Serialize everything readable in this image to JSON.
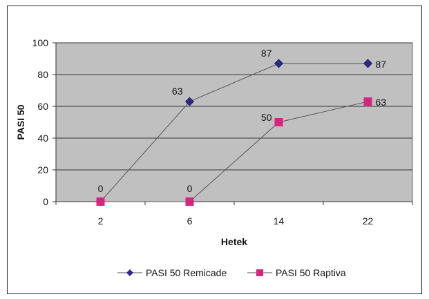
{
  "chart_data": {
    "type": "line",
    "title": "",
    "xlabel": "Hetek",
    "ylabel": "PASI 50",
    "categories": [
      "2",
      "6",
      "14",
      "22"
    ],
    "ylim": [
      0,
      100
    ],
    "yticks": [
      "0",
      "20",
      "40",
      "60",
      "80",
      "100"
    ],
    "grid": true,
    "legend_position": "bottom",
    "series": [
      {
        "name": "PASI 50 Remicade",
        "values": [
          0,
          63,
          87,
          87
        ],
        "labels": [
          "0",
          "63",
          "87",
          "87"
        ],
        "marker": "diamond",
        "color": "#2b2a8c"
      },
      {
        "name": "PASI 50 Raptiva",
        "values": [
          0,
          0,
          50,
          63
        ],
        "labels": [
          "",
          "0",
          "50",
          "63"
        ],
        "marker": "square",
        "color": "#d6247f"
      }
    ],
    "plot_background": "#c0c0c0",
    "line_color": "#555555"
  }
}
